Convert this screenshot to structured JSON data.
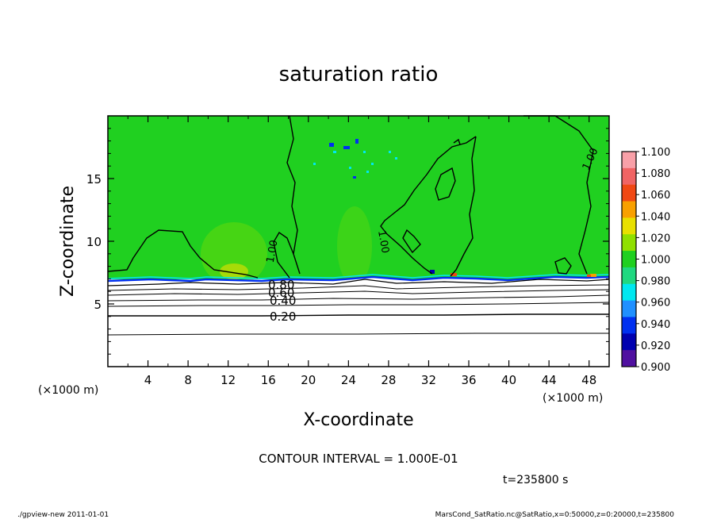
{
  "chart_data": {
    "type": "heatmap",
    "title": "saturation ratio",
    "xlabel": "X-coordinate",
    "ylabel": "Z-coordinate",
    "x_unit": "(×1000 m)",
    "y_unit": "(×1000 m)",
    "xlim": [
      0,
      50
    ],
    "ylim": [
      0,
      20
    ],
    "x_ticks": [
      4,
      8,
      12,
      16,
      20,
      24,
      28,
      32,
      36,
      40,
      44,
      48
    ],
    "y_ticks": [
      5,
      10,
      15
    ],
    "colorbar": {
      "levels": [
        "1.100",
        "1.080",
        "1.060",
        "1.040",
        "1.020",
        "1.000",
        "0.980",
        "0.960",
        "0.940",
        "0.920",
        "0.900"
      ],
      "colors": [
        "#f8a0a8",
        "#f06464",
        "#f04814",
        "#f8a000",
        "#e8e000",
        "#90e000",
        "#20d020",
        "#20d880",
        "#00e8f0",
        "#2090ff",
        "#0030f0",
        "#0000b0",
        "#5010a0"
      ]
    },
    "contour_labels": [
      "1.00",
      "1.00",
      "1.00",
      "0.80",
      "0.60",
      "0.40",
      "0.20"
    ],
    "contour_interval_text": "CONTOUR INTERVAL = 1.000E-01",
    "time_text": "t=235800 s"
  },
  "footer": {
    "left": "./gpview-new   2011-01-01",
    "right": "MarsCond_SatRatio.nc@SatRatio,x=0:50000,z=0:20000,t=235800"
  }
}
